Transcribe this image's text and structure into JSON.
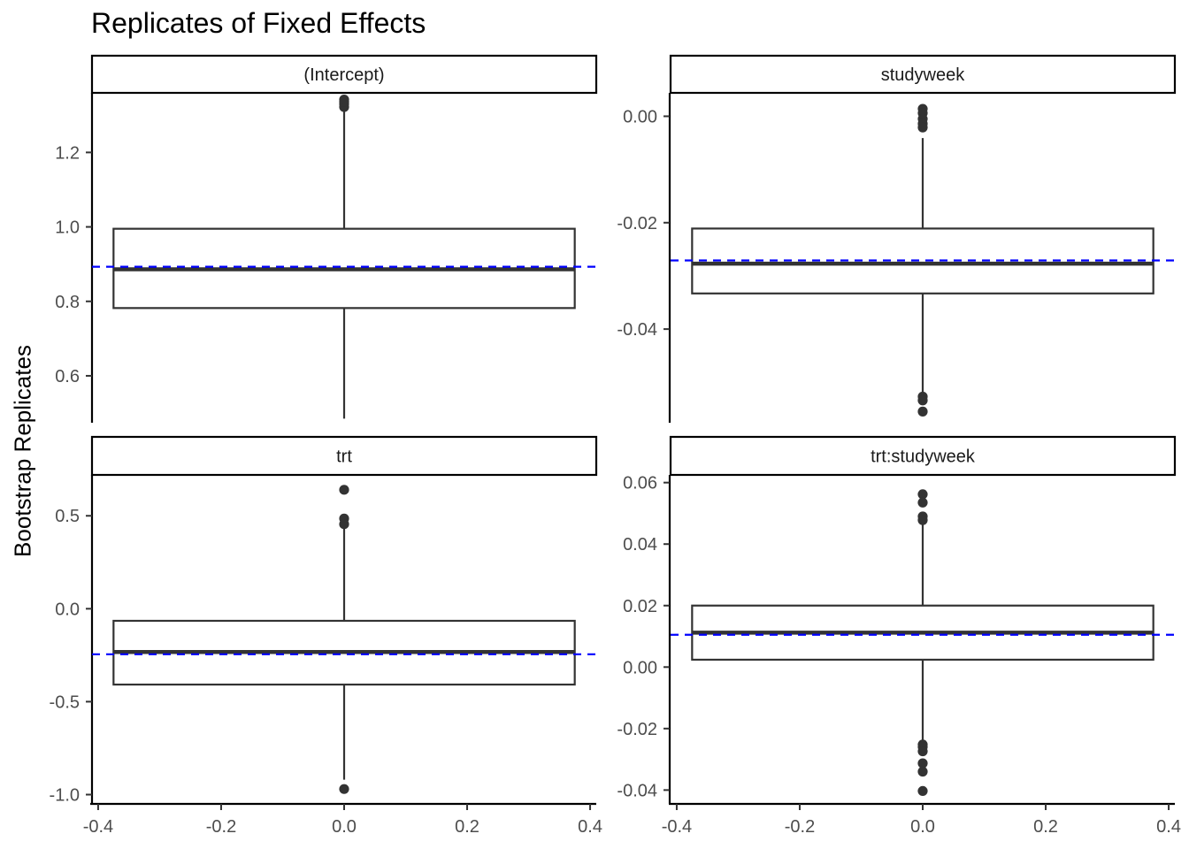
{
  "title": "Replicates of Fixed Effects",
  "ylabel": "Bootstrap Replicates",
  "colors": {
    "box": "#333333",
    "axis": "#000000",
    "reference_line": "#0000FF",
    "tick_text": "#4D4D4D"
  },
  "chart_data": [
    {
      "type": "box",
      "facet": "(Intercept)",
      "x_ticks": [
        -0.4,
        -0.2,
        0.0,
        0.2,
        0.4
      ],
      "x_tick_labels": [
        "-0.4",
        "-0.2",
        "0.0",
        "0.2",
        "0.4"
      ],
      "xlim": [
        -0.41,
        0.41
      ],
      "y_ticks": [
        0.6,
        0.8,
        1.0,
        1.2
      ],
      "y_tick_labels": [
        "0.6",
        "0.8",
        "1.0",
        "1.2"
      ],
      "ylim": [
        0.474,
        1.36
      ],
      "box": {
        "xmin": -0.375,
        "xmax": 0.375,
        "whisker_low": 0.485,
        "q1": 0.782,
        "median": 0.886,
        "q3": 0.995,
        "whisker_high": 1.31
      },
      "outliers": [
        1.322,
        1.33,
        1.336,
        1.342
      ],
      "reference_line": 0.893
    },
    {
      "type": "box",
      "facet": "studyweek",
      "x_ticks": [
        -0.4,
        -0.2,
        0.0,
        0.2,
        0.4
      ],
      "x_tick_labels": [
        "-0.4",
        "-0.2",
        "0.0",
        "0.2",
        "0.4"
      ],
      "xlim": [
        -0.41,
        0.41
      ],
      "y_ticks": [
        -0.04,
        -0.02,
        0.0
      ],
      "y_tick_labels": [
        "-0.04",
        "-0.02",
        "0.00"
      ],
      "ylim": [
        -0.0576,
        0.0044
      ],
      "box": {
        "xmin": -0.375,
        "xmax": 0.375,
        "whisker_low": -0.0523,
        "q1": -0.0333,
        "median": -0.0277,
        "q3": -0.0211,
        "whisker_high": -0.0041
      },
      "outliers": [
        0.0014,
        0.0006,
        -0.0005,
        -0.0014,
        -0.0021,
        -0.0527,
        -0.0534,
        -0.0555
      ],
      "reference_line": -0.0271
    },
    {
      "type": "box",
      "facet": "trt",
      "x_ticks": [
        -0.4,
        -0.2,
        0.0,
        0.2,
        0.4
      ],
      "x_tick_labels": [
        "-0.4",
        "-0.2",
        "0.0",
        "0.2",
        "0.4"
      ],
      "xlim": [
        -0.41,
        0.41
      ],
      "y_ticks": [
        -1.0,
        -0.5,
        0.0,
        0.5
      ],
      "y_tick_labels": [
        "-1.0",
        "-0.5",
        "0.0",
        "0.5"
      ],
      "ylim": [
        -1.05,
        0.72
      ],
      "box": {
        "xmin": -0.375,
        "xmax": 0.375,
        "whisker_low": -0.92,
        "q1": -0.408,
        "median": -0.233,
        "q3": -0.065,
        "whisker_high": 0.44
      },
      "outliers": [
        0.64,
        0.485,
        0.455,
        -0.97
      ],
      "reference_line": -0.245
    },
    {
      "type": "box",
      "facet": "trt:studyweek",
      "x_ticks": [
        -0.4,
        -0.2,
        0.0,
        0.2,
        0.4
      ],
      "x_tick_labels": [
        "-0.4",
        "-0.2",
        "0.0",
        "0.2",
        "0.4"
      ],
      "xlim": [
        -0.41,
        0.41
      ],
      "y_ticks": [
        -0.04,
        -0.02,
        0.0,
        0.02,
        0.04,
        0.06
      ],
      "y_tick_labels": [
        "-0.04",
        "-0.02",
        "0.00",
        "0.02",
        "0.04",
        "0.06"
      ],
      "ylim": [
        -0.0445,
        0.0625
      ],
      "box": {
        "xmin": -0.375,
        "xmax": 0.375,
        "whisker_low": -0.0245,
        "q1": 0.0024,
        "median": 0.0112,
        "q3": 0.02,
        "whisker_high": 0.0465
      },
      "outliers": [
        0.0562,
        0.0535,
        0.049,
        0.0478,
        -0.0252,
        -0.026,
        -0.0274,
        -0.0313,
        -0.034,
        -0.0403
      ],
      "reference_line": 0.0105
    }
  ]
}
